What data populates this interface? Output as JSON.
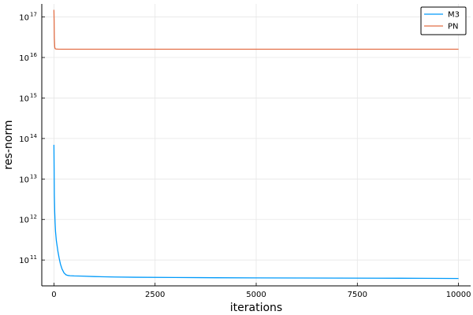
{
  "chart_data": {
    "type": "line",
    "title": "",
    "xlabel": "iterations",
    "ylabel": "res-norm",
    "xlim": [
      -300,
      10300
    ],
    "ylim": [
      23000000000.0,
      2.1e+17
    ],
    "yscale": "log",
    "grid": true,
    "legend_position": "top-right",
    "x_ticks": [
      0,
      2500,
      5000,
      7500,
      10000
    ],
    "x_tick_labels": [
      "0",
      "2500",
      "5000",
      "7500",
      "10000"
    ],
    "y_ticks": [
      100000000000.0,
      1000000000000.0,
      10000000000000.0,
      100000000000000.0,
      1000000000000000.0,
      1e+16,
      1e+17
    ],
    "y_tick_labels": [
      {
        "base": "10",
        "exp": "11"
      },
      {
        "base": "10",
        "exp": "12"
      },
      {
        "base": "10",
        "exp": "13"
      },
      {
        "base": "10",
        "exp": "14"
      },
      {
        "base": "10",
        "exp": "15"
      },
      {
        "base": "10",
        "exp": "16"
      },
      {
        "base": "10",
        "exp": "17"
      }
    ],
    "series": [
      {
        "name": "M3",
        "color": "#009AFA",
        "x": [
          0,
          10,
          20,
          30,
          40,
          60,
          80,
          100,
          130,
          160,
          200,
          250,
          300,
          350,
          400,
          500,
          700,
          1000,
          1500,
          2000,
          3000,
          4000,
          5000,
          6000,
          7000,
          8000,
          9000,
          10000
        ],
        "y": [
          70000000000000.0,
          4000000000000.0,
          1500000000000.0,
          800000000000.0,
          500000000000.0,
          300000000000.0,
          220000000000.0,
          160000000000.0,
          110000000000.0,
          80000000000.0,
          60000000000.0,
          48000000000.0,
          43000000000.0,
          41500000000.0,
          41000000000.0,
          40500000000.0,
          40000000000.0,
          39000000000.0,
          38000000000.0,
          37500000000.0,
          37000000000.0,
          36500000000.0,
          36200000000.0,
          36000000000.0,
          35800000000.0,
          35600000000.0,
          35400000000.0,
          35000000000.0
        ]
      },
      {
        "name": "PN",
        "color": "#E26F46",
        "x": [
          0,
          5,
          10,
          20,
          30,
          50,
          100,
          200,
          500,
          1000,
          2500,
          5000,
          7500,
          10000
        ],
        "y": [
          1.5e+17,
          8e+16,
          3e+16,
          1.8e+16,
          1.65e+16,
          1.62e+16,
          1.61e+16,
          1.6e+16,
          1.6e+16,
          1.6e+16,
          1.6e+16,
          1.6e+16,
          1.6e+16,
          1.6e+16
        ]
      }
    ]
  },
  "colors": {
    "grid": "#e6e6e6",
    "axis": "#000000",
    "legend_border": "#000000"
  }
}
